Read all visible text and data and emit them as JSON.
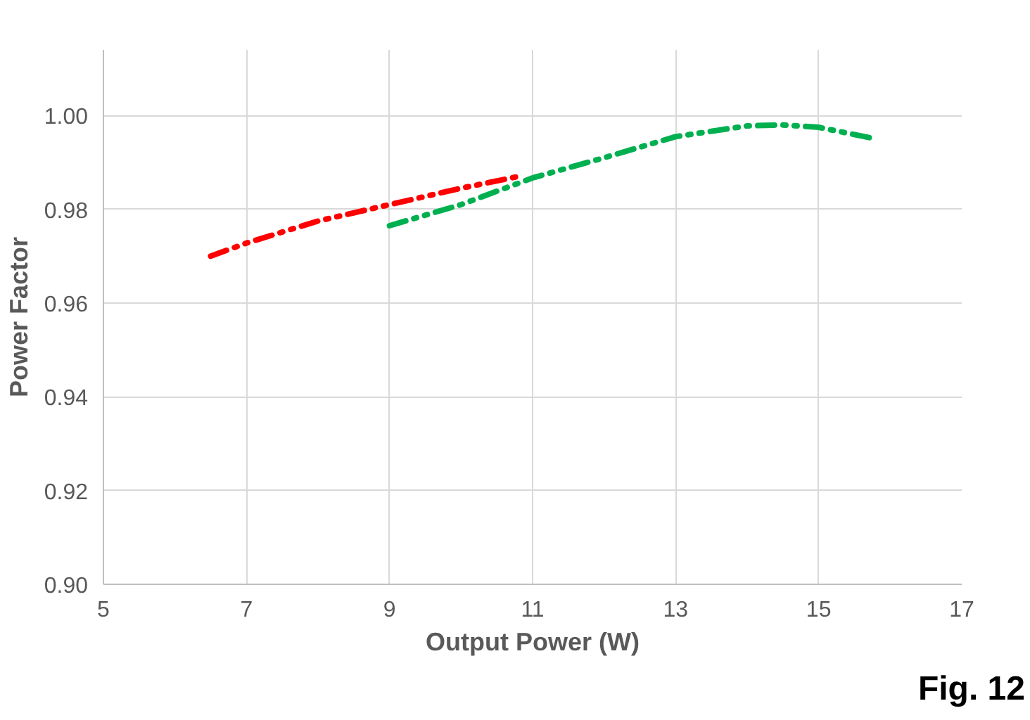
{
  "chart_data": {
    "type": "line",
    "xlabel": "Output Power (W)",
    "ylabel": "Power Factor",
    "xlim": [
      5,
      17
    ],
    "xticks": [
      5,
      7,
      9,
      11,
      13,
      15,
      17
    ],
    "ylim": [
      0.9,
      1.014
    ],
    "yticks": [
      {
        "value": 0.9,
        "label": "0.90"
      },
      {
        "value": 0.92,
        "label": "0.92"
      },
      {
        "value": 0.94,
        "label": "0.94"
      },
      {
        "value": 0.96,
        "label": "0.96"
      },
      {
        "value": 0.98,
        "label": "0.98"
      },
      {
        "value": 1.0,
        "label": "1.00"
      }
    ],
    "grid": true,
    "line_style": "dashed",
    "marker": "none",
    "series": [
      {
        "color": "#ff0000",
        "x": [
          6.5,
          7,
          8,
          9,
          10,
          10.8
        ],
        "values": [
          0.97,
          0.9728,
          0.9775,
          0.981,
          0.9845,
          0.987
        ]
      },
      {
        "color": "#00b050",
        "x": [
          9,
          10,
          11,
          12,
          13,
          14,
          14.5,
          15,
          15.8
        ],
        "values": [
          0.9765,
          0.981,
          0.9867,
          0.991,
          0.9955,
          0.9978,
          0.998,
          0.9975,
          0.995
        ]
      }
    ],
    "annotations": [
      "Fig. 12"
    ]
  }
}
